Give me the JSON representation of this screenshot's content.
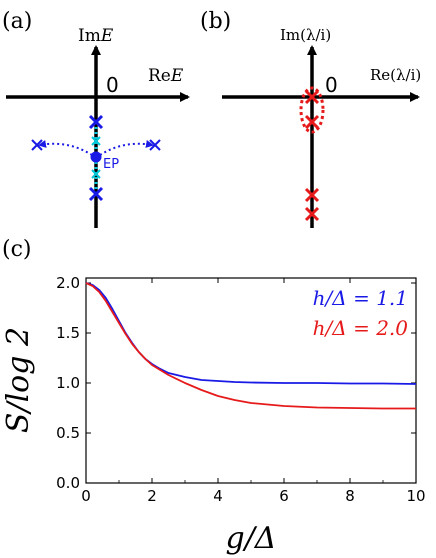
{
  "panel_a": {
    "label": "(a)",
    "ylabel_prefix": "Im",
    "ylabel_var": "E",
    "xlabel_prefix": "Re",
    "xlabel_var": "E",
    "origin": "0",
    "ep_label": "EP"
  },
  "panel_b": {
    "label": "(b)",
    "ylabel": "Im(λ/i)",
    "xlabel": "Re(λ/i)",
    "origin": "0"
  },
  "panel_c": {
    "label": "(c)"
  },
  "colors": {
    "blue": "#1a1ae6",
    "red": "#e61a1a",
    "cyan": "#00c8d8",
    "axis": "#000000"
  },
  "chart_data": {
    "type": "line",
    "title": "",
    "xlabel": "g/Δ",
    "ylabel": "S/log 2",
    "xlim": [
      0,
      10
    ],
    "ylim": [
      0,
      2.05
    ],
    "xticks": [
      "0",
      "2",
      "4",
      "6",
      "8",
      "10"
    ],
    "yticks": [
      "0.0",
      "0.5",
      "1.0",
      "1.5",
      "2.0"
    ],
    "legend_position": "top-right",
    "grid": false,
    "series": [
      {
        "name": "h/Δ = 1.1",
        "color": "#1a1ae6",
        "x": [
          0,
          0.2,
          0.4,
          0.6,
          0.8,
          1.0,
          1.2,
          1.4,
          1.6,
          1.8,
          2.0,
          2.2,
          2.5,
          3.0,
          3.5,
          4.0,
          4.5,
          5.0,
          6.0,
          7.0,
          8.0,
          9.0,
          10.0
        ],
        "y": [
          2.0,
          1.98,
          1.93,
          1.85,
          1.74,
          1.62,
          1.5,
          1.4,
          1.31,
          1.24,
          1.19,
          1.15,
          1.1,
          1.06,
          1.03,
          1.02,
          1.01,
          1.005,
          1.0,
          1.0,
          0.995,
          0.995,
          0.99
        ]
      },
      {
        "name": "h/Δ = 2.0",
        "color": "#e61a1a",
        "x": [
          0,
          0.2,
          0.4,
          0.6,
          0.8,
          1.0,
          1.2,
          1.4,
          1.6,
          1.8,
          2.0,
          2.2,
          2.5,
          3.0,
          3.5,
          4.0,
          4.5,
          5.0,
          6.0,
          7.0,
          8.0,
          9.0,
          10.0
        ],
        "y": [
          2.0,
          1.97,
          1.91,
          1.82,
          1.71,
          1.6,
          1.49,
          1.39,
          1.31,
          1.24,
          1.18,
          1.14,
          1.08,
          1.0,
          0.93,
          0.87,
          0.83,
          0.8,
          0.77,
          0.755,
          0.75,
          0.745,
          0.745
        ]
      }
    ]
  }
}
